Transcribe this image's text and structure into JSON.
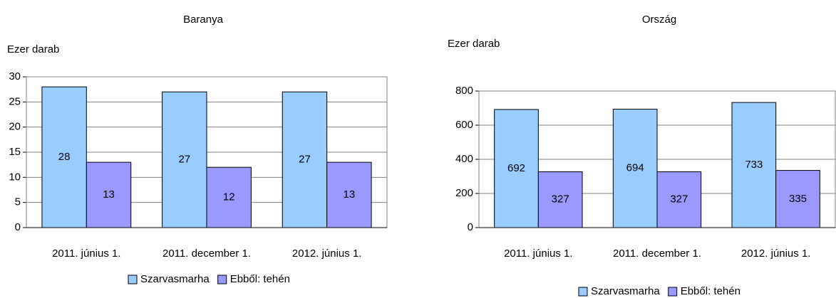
{
  "chart_data": [
    {
      "type": "bar",
      "title": "Baranya",
      "y_label": "Ezer darab",
      "categories": [
        "2011. június 1.",
        "2011. december 1.",
        "2012. június 1."
      ],
      "series": [
        {
          "name": "Szarvasmarha",
          "color": "#99ccff",
          "values": [
            28,
            27,
            27
          ]
        },
        {
          "name": "Ebből: tehén",
          "color": "#9999ff",
          "values": [
            13,
            12,
            13
          ]
        }
      ],
      "ylim": [
        0,
        30
      ],
      "yticks": [
        0,
        5,
        10,
        15,
        20,
        25,
        30
      ],
      "grid": true,
      "legend": "bottom"
    },
    {
      "type": "bar",
      "title": "Ország",
      "y_label": "Ezer darab",
      "categories": [
        "2011. június 1.",
        "2011. december 1.",
        "2012. június 1."
      ],
      "series": [
        {
          "name": "Szarvasmarha",
          "color": "#99ccff",
          "values": [
            692,
            694,
            733
          ]
        },
        {
          "name": "Ebből: tehén",
          "color": "#9999ff",
          "values": [
            327,
            327,
            335
          ]
        }
      ],
      "ylim": [
        0,
        800
      ],
      "yticks": [
        0,
        200,
        400,
        600,
        800
      ],
      "grid": true,
      "legend": "bottom"
    }
  ]
}
